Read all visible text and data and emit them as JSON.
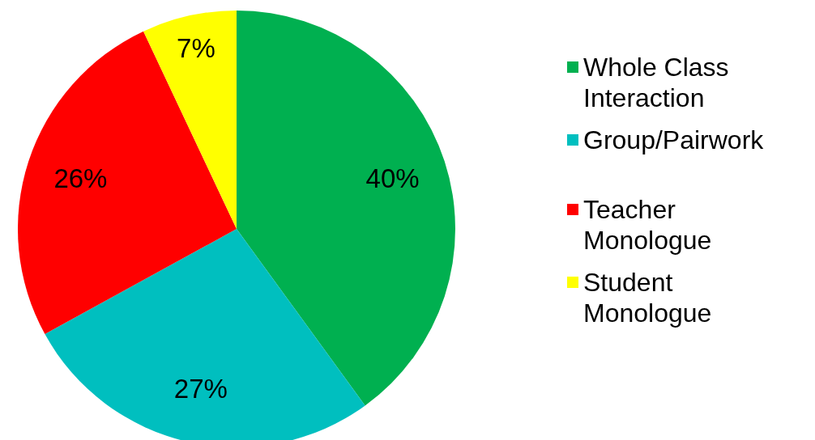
{
  "chart_data": {
    "type": "pie",
    "categories": [
      "Whole Class Interaction",
      "Group/Pairwork",
      "Teacher Monologue",
      "Student Monologue"
    ],
    "values": [
      40,
      27,
      26,
      7
    ],
    "colors": [
      "#00b050",
      "#00bfbf",
      "#ff0000",
      "#ffff00"
    ],
    "value_labels": [
      "40%",
      "27%",
      "26%",
      "7%"
    ],
    "legend": "right"
  }
}
